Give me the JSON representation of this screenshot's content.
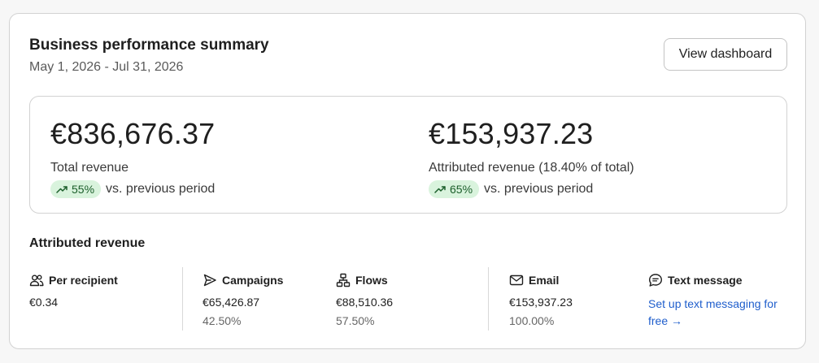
{
  "header": {
    "title": "Business performance summary",
    "date_range": "May 1, 2026 - Jul 31, 2026",
    "view_dashboard_label": "View dashboard"
  },
  "summary": {
    "total": {
      "amount": "€836,676.37",
      "label": "Total revenue",
      "change": "55%",
      "comparison": "vs. previous period"
    },
    "attributed": {
      "amount": "€153,937.23",
      "label": "Attributed revenue (18.40% of total)",
      "change": "65%",
      "comparison": "vs. previous period"
    }
  },
  "attributed_section": {
    "title": "Attributed revenue",
    "columns": [
      {
        "label": "Per recipient",
        "value": "€0.34",
        "icon": "people-icon"
      },
      {
        "label": "Campaigns",
        "value": "€65,426.87",
        "percent": "42.50%",
        "icon": "send-icon"
      },
      {
        "label": "Flows",
        "value": "€88,510.36",
        "percent": "57.50%",
        "icon": "flow-icon"
      },
      {
        "label": "Email",
        "value": "€153,937.23",
        "percent": "100.00%",
        "icon": "mail-icon"
      },
      {
        "label": "Text message",
        "link": "Set up text messaging for free →",
        "icon": "chat-icon"
      }
    ]
  },
  "colors": {
    "positive_pill_bg": "#d9f3dd",
    "positive_text": "#1b5e2a",
    "link": "#1f5ecc"
  }
}
